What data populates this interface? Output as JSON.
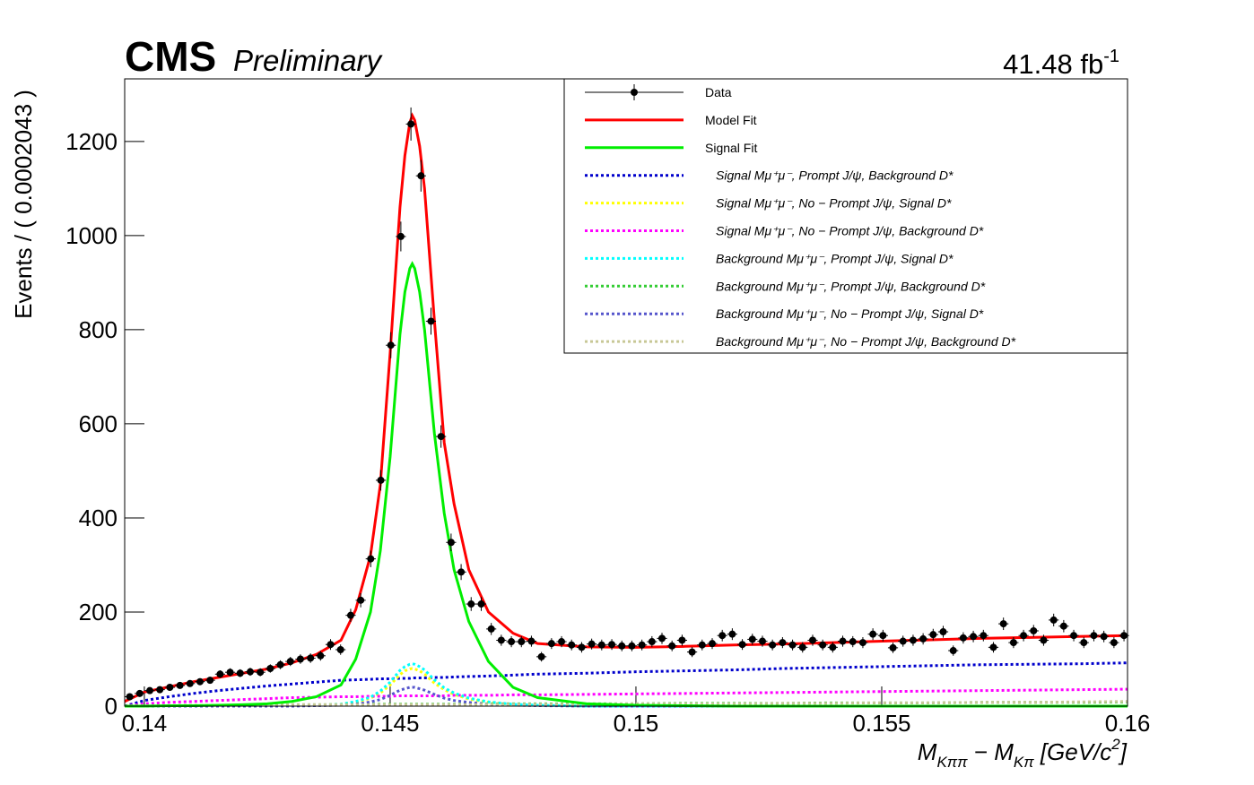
{
  "header": {
    "experiment": "CMS",
    "status": "Preliminary",
    "luminosity": "41.48 fb",
    "luminosity_exponent": "-1"
  },
  "chart_data": {
    "type": "line",
    "xlabel_parts": [
      "M",
      "Kππ",
      " − M",
      "Kπ",
      "   [GeV/c",
      "2",
      "]"
    ],
    "ylabel": "Events / ( 0.0002043 )",
    "xlim": [
      0.1396,
      0.16
    ],
    "ylim": [
      0,
      1333
    ],
    "xticks": [
      0.14,
      0.145,
      0.15,
      0.155,
      0.16
    ],
    "yticks": [
      0,
      200,
      400,
      600,
      800,
      1000,
      1200
    ],
    "legend": "upper right",
    "data": {
      "name": "Data",
      "color": "#000000",
      "x": [
        0.139702,
        0.139906,
        0.140111,
        0.140315,
        0.140519,
        0.140724,
        0.140928,
        0.141132,
        0.141337,
        0.141541,
        0.141745,
        0.141949,
        0.142154,
        0.142358,
        0.142562,
        0.142767,
        0.142971,
        0.143175,
        0.14338,
        0.143584,
        0.143788,
        0.143992,
        0.144197,
        0.144401,
        0.144605,
        0.14481,
        0.145014,
        0.145218,
        0.145423,
        0.145627,
        0.145831,
        0.146035,
        0.14624,
        0.146444,
        0.146648,
        0.146853,
        0.147057,
        0.147261,
        0.147466,
        0.14767,
        0.147874,
        0.148078,
        0.148283,
        0.148487,
        0.148691,
        0.148896,
        0.1491,
        0.149304,
        0.149509,
        0.149713,
        0.149917,
        0.150122,
        0.150326,
        0.15053,
        0.150734,
        0.150939,
        0.151143,
        0.151347,
        0.151552,
        0.151756,
        0.15196,
        0.152164,
        0.152369,
        0.152573,
        0.152777,
        0.152982,
        0.153186,
        0.15339,
        0.153595,
        0.153799,
        0.154003,
        0.154207,
        0.154412,
        0.154616,
        0.15482,
        0.155025,
        0.155229,
        0.155433,
        0.155638,
        0.155842,
        0.156046,
        0.15625,
        0.156455,
        0.156659,
        0.156863,
        0.157068,
        0.157272,
        0.157476,
        0.157681,
        0.157885,
        0.158089,
        0.158293,
        0.158498,
        0.158702,
        0.158906,
        0.159111,
        0.159315,
        0.159519,
        0.159724,
        0.159928
      ],
      "values": [
        20,
        27,
        33,
        35,
        40,
        44,
        48,
        52,
        55,
        68,
        72,
        70,
        73,
        72,
        80,
        88,
        95,
        100,
        102,
        107,
        131,
        120,
        193,
        225,
        313,
        480,
        767,
        998,
        1237,
        1127,
        818,
        573,
        348,
        285,
        217,
        217,
        164,
        140,
        137,
        137,
        138,
        105,
        133,
        137,
        130,
        125,
        132,
        130,
        131,
        128,
        128,
        130,
        137,
        144,
        128,
        140,
        115,
        130,
        133,
        150,
        153,
        131,
        142,
        138,
        130,
        135,
        130,
        125,
        140,
        130,
        125,
        138,
        137,
        135,
        153,
        150,
        124,
        138,
        140,
        143,
        152,
        158,
        118,
        145,
        148,
        150,
        125,
        175,
        135,
        150,
        160,
        140,
        183,
        170,
        150,
        135,
        150,
        148,
        135,
        150
      ],
      "errors": [
        4.5,
        5.2,
        5.7,
        5.9,
        6.3,
        6.6,
        6.9,
        7.2,
        7.4,
        8.2,
        8.5,
        8.4,
        8.5,
        8.5,
        8.9,
        9.4,
        9.7,
        10,
        10.1,
        10.3,
        11.4,
        11,
        13.9,
        15,
        17.7,
        21.9,
        27.7,
        31.6,
        35.2,
        33.6,
        28.6,
        23.9,
        18.7,
        16.9,
        14.7,
        14.7,
        12.8,
        11.8,
        11.7,
        11.7,
        11.7,
        10.2,
        11.5,
        11.7,
        11.4,
        11.2,
        11.5,
        11.4,
        11.4,
        11.3,
        11.3,
        11.4,
        11.7,
        12,
        11.3,
        11.8,
        10.7,
        11.4,
        11.5,
        12.2,
        12.4,
        11.4,
        11.9,
        11.7,
        11.4,
        11.6,
        11.4,
        11.2,
        11.8,
        11.4,
        11.2,
        11.7,
        11.7,
        11.6,
        12.4,
        12.2,
        11.1,
        11.7,
        11.8,
        12,
        12.3,
        12.6,
        10.9,
        12,
        12.2,
        12.2,
        11.2,
        13.2,
        11.6,
        12.2,
        12.6,
        11.8,
        13.5,
        13,
        12.2,
        11.6,
        12.2,
        12.2,
        11.6,
        12.2
      ]
    },
    "curve_x": [
      0.1396,
      0.14,
      0.1405,
      0.141,
      0.1415,
      0.142,
      0.1425,
      0.143,
      0.1435,
      0.144,
      0.1443,
      0.1446,
      0.1448,
      0.145,
      0.1452,
      0.1453,
      0.1454,
      0.14545,
      0.1455,
      0.1456,
      0.1457,
      0.1459,
      0.1461,
      0.1463,
      0.1466,
      0.147,
      0.1475,
      0.148,
      0.149,
      0.15,
      0.151,
      0.152,
      0.153,
      0.154,
      0.155,
      0.156,
      0.157,
      0.158,
      0.159,
      0.16
    ],
    "series": [
      {
        "name": "Model Fit",
        "color": "#ff0000",
        "style": "solid",
        "values": [
          10,
          30,
          41,
          52,
          61,
          70,
          79,
          92,
          110,
          140,
          205,
          320,
          470,
          750,
          1060,
          1170,
          1240,
          1255,
          1245,
          1190,
          1100,
          820,
          560,
          430,
          290,
          200,
          155,
          133,
          126,
          125,
          127,
          130,
          132,
          135,
          138,
          141,
          144,
          146,
          148,
          150
        ]
      },
      {
        "name": "Signal Fit",
        "color": "#00ee00",
        "style": "solid",
        "values": [
          0,
          0,
          1,
          1,
          2,
          3,
          5,
          10,
          20,
          45,
          100,
          200,
          330,
          530,
          790,
          880,
          930,
          940,
          930,
          880,
          800,
          580,
          410,
          290,
          180,
          95,
          40,
          18,
          5,
          2,
          1,
          0,
          0,
          0,
          0,
          0,
          0,
          0,
          0,
          0
        ]
      },
      {
        "name": "Signal  Mμ⁺μ⁻,  Prompt  J/ψ,  Background  D*",
        "color": "#0000cc",
        "style": "dotted",
        "values": [
          0,
          12,
          20,
          27,
          33,
          38,
          43,
          47,
          51,
          55,
          56,
          57,
          58,
          58,
          59,
          59,
          59,
          60,
          60,
          60,
          60,
          61,
          61,
          62,
          63,
          64,
          66,
          68,
          70,
          73,
          75,
          77,
          80,
          82,
          84,
          86,
          88,
          89,
          90,
          92
        ]
      },
      {
        "name": "Signal  Mμ⁺μ⁻,  No − Prompt  J/ψ,  Signal  D*",
        "color": "#ffff00",
        "style": "dotted",
        "values": [
          0,
          0,
          0,
          0,
          0,
          0,
          0,
          1,
          2,
          4,
          8,
          17,
          28,
          45,
          67,
          75,
          79,
          80,
          79,
          75,
          68,
          49,
          35,
          25,
          15,
          8,
          3,
          2,
          0,
          0,
          0,
          0,
          0,
          0,
          0,
          0,
          0,
          0,
          0,
          0
        ]
      },
      {
        "name": "Signal  Mμ⁺μ⁻,  No − Prompt  J/ψ,  Background  D*",
        "color": "#ff00ff",
        "style": "dotted",
        "values": [
          0,
          5,
          8,
          10,
          12,
          14,
          16,
          18,
          19,
          20,
          20,
          21,
          21,
          21,
          22,
          22,
          22,
          22,
          22,
          22,
          22,
          22,
          22,
          23,
          23,
          23,
          24,
          24,
          25,
          26,
          27,
          28,
          29,
          30,
          31,
          32,
          33,
          34,
          35,
          36
        ]
      },
      {
        "name": "Background  Mμ⁺μ⁻,  Prompt  J/ψ,  Signal  D*",
        "color": "#00ffff",
        "style": "dotted",
        "values": [
          0,
          0,
          0,
          0,
          0,
          0,
          0,
          1,
          2,
          4,
          10,
          19,
          32,
          51,
          76,
          84,
          89,
          90,
          89,
          84,
          77,
          56,
          39,
          28,
          17,
          9,
          4,
          2,
          0,
          0,
          0,
          0,
          0,
          0,
          0,
          0,
          0,
          0,
          0,
          0
        ]
      },
      {
        "name": "Background  Mμ⁺μ⁻,  Prompt  J/ψ,  Background  D*",
        "color": "#33cc33",
        "style": "dotted",
        "values": [
          0,
          1,
          1,
          2,
          2,
          2,
          3,
          3,
          3,
          3,
          4,
          4,
          4,
          4,
          4,
          4,
          4,
          4,
          4,
          4,
          4,
          4,
          4,
          4,
          4,
          5,
          5,
          5,
          5,
          5,
          6,
          6,
          6,
          7,
          7,
          7,
          8,
          8,
          8,
          9
        ]
      },
      {
        "name": "Background  Mμ⁺μ⁻,  No − Prompt  J/ψ,  Signal  D*",
        "color": "#5555cc",
        "style": "dotted",
        "values": [
          0,
          0,
          0,
          0,
          0,
          0,
          0,
          0,
          1,
          2,
          4,
          9,
          14,
          23,
          34,
          37,
          40,
          40,
          40,
          37,
          34,
          25,
          17,
          12,
          8,
          4,
          2,
          1,
          0,
          0,
          0,
          0,
          0,
          0,
          0,
          0,
          0,
          0,
          0,
          0
        ]
      },
      {
        "name": "Background  Mμ⁺μ⁻,  No − Prompt  J/ψ,  Background  D*",
        "color": "#c8c896",
        "style": "dotted",
        "values": [
          0,
          1,
          1,
          2,
          2,
          2,
          2,
          3,
          3,
          3,
          3,
          3,
          3,
          3,
          3,
          3,
          3,
          3,
          3,
          3,
          3,
          3,
          3,
          3,
          3,
          4,
          4,
          4,
          4,
          5,
          5,
          5,
          6,
          6,
          7,
          7,
          8,
          8,
          9,
          10
        ]
      }
    ]
  }
}
